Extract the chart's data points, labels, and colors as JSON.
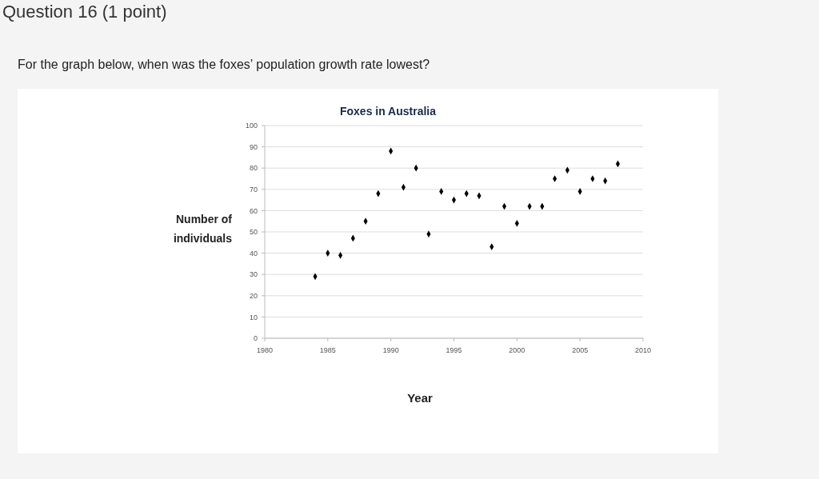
{
  "chart_data": {
    "type": "scatter",
    "title": "Foxes in Australia",
    "xlabel": "Year",
    "ylabel": "Number of individuals",
    "annotations": [
      "Question 16 (1 point)",
      "For the graph below, when was the foxes’ population growth rate lowest?"
    ],
    "x": [
      1984,
      1985,
      1986,
      1987,
      1988,
      1989,
      1990,
      1991,
      1992,
      1993,
      1994,
      1995,
      1996,
      1997,
      1998,
      1999,
      2000,
      2001,
      2002,
      2003,
      2004,
      2005,
      2006,
      2007,
      2008
    ],
    "values": [
      29,
      40,
      39,
      47,
      55,
      68,
      88,
      71,
      80,
      49,
      69,
      65,
      68,
      67,
      43,
      62,
      54,
      62,
      62,
      75,
      79,
      69,
      75,
      74,
      82
    ],
    "color": "#000000",
    "marker": "diamond",
    "grid": "y",
    "xlim": [
      1980,
      2010
    ],
    "xticks": [
      1980,
      1985,
      1990,
      1995,
      2000,
      2005,
      2010
    ],
    "ylim": [
      0,
      100
    ],
    "yticks": [
      0,
      10,
      20,
      30,
      40,
      50,
      60,
      70,
      80,
      90,
      100
    ]
  }
}
